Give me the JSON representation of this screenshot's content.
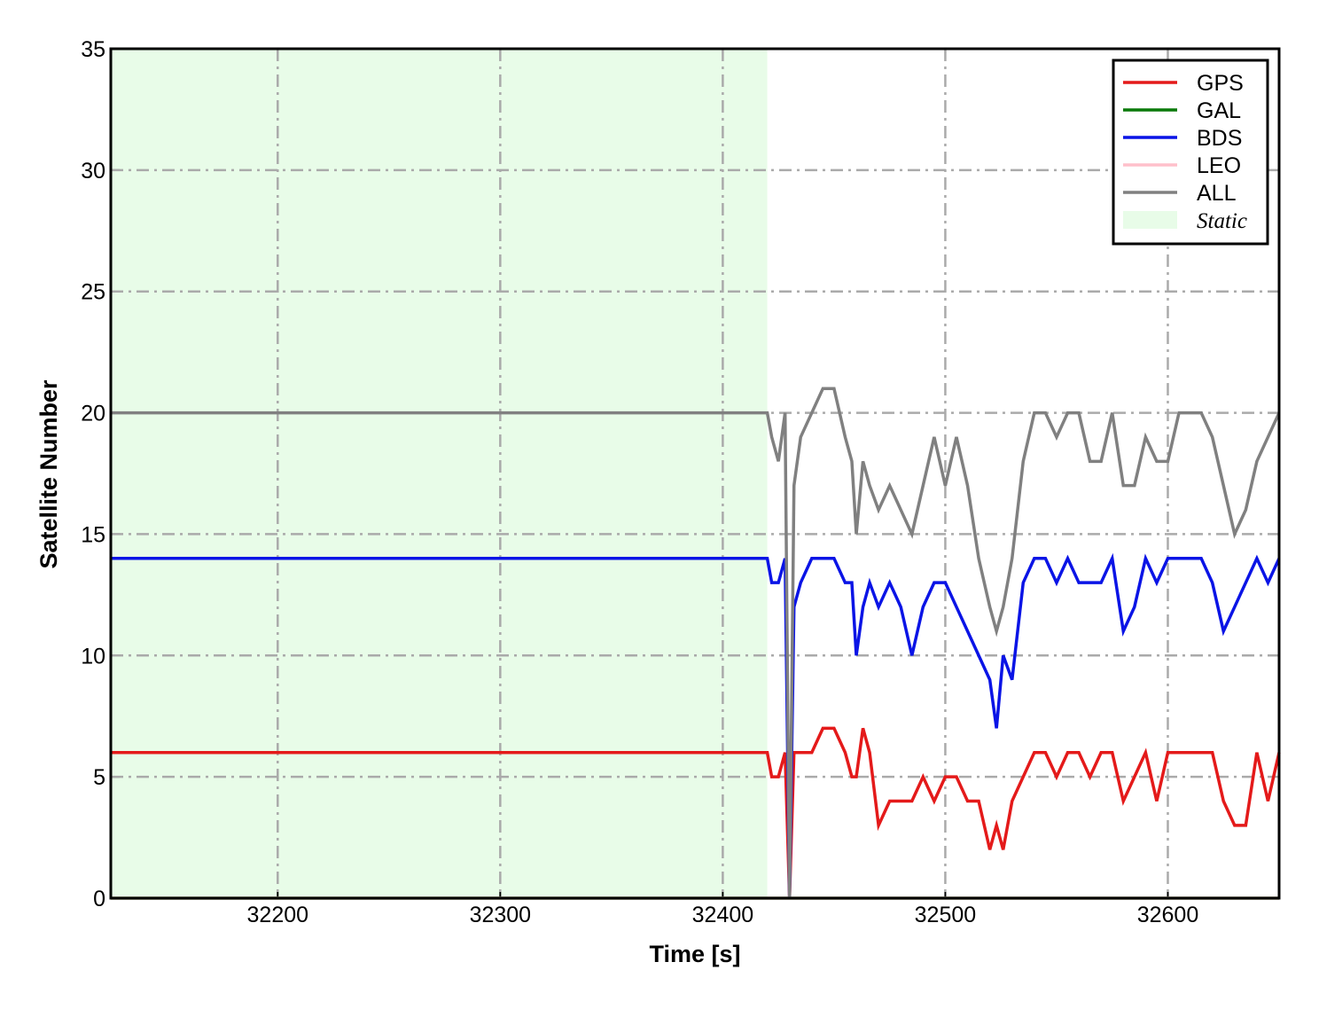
{
  "chart_data": {
    "type": "line",
    "xlabel": "Time [s]",
    "ylabel": "Satellite Number",
    "xlim": [
      32125,
      32650
    ],
    "xticks": [
      32200,
      32300,
      32400,
      32500,
      32600
    ],
    "ylim": [
      0,
      35
    ],
    "yticks": [
      0,
      5,
      10,
      15,
      20,
      25,
      30,
      35
    ],
    "grid": true,
    "legend": "upper right",
    "static_region": {
      "name": "Static",
      "xlim": [
        32125,
        32420
      ],
      "color": "#e8fce8"
    },
    "x": [
      32125,
      32420,
      32422,
      32425,
      32428,
      32430,
      32432,
      32435,
      32440,
      32445,
      32450,
      32455,
      32458,
      32460,
      32463,
      32466,
      32470,
      32475,
      32480,
      32485,
      32490,
      32495,
      32500,
      32505,
      32510,
      32515,
      32520,
      32523,
      32526,
      32530,
      32535,
      32540,
      32545,
      32550,
      32555,
      32560,
      32565,
      32570,
      32575,
      32580,
      32585,
      32590,
      32595,
      32600,
      32605,
      32610,
      32615,
      32620,
      32625,
      32630,
      32635,
      32640,
      32645,
      32650
    ],
    "series": [
      {
        "name": "GPS",
        "color": "#e41a1a",
        "values": [
          6,
          6,
          5,
          5,
          6,
          0,
          6,
          6,
          6,
          7,
          7,
          6,
          5,
          5,
          7,
          6,
          3,
          4,
          4,
          4,
          5,
          4,
          5,
          5,
          4,
          4,
          2,
          3,
          2,
          4,
          5,
          6,
          6,
          5,
          6,
          6,
          5,
          6,
          6,
          4,
          5,
          6,
          4,
          6,
          6,
          6,
          6,
          6,
          4,
          3,
          3,
          6,
          4,
          6
        ]
      },
      {
        "name": "GAL",
        "color": "#0a7a0a",
        "values": [
          0,
          0,
          0,
          0,
          0,
          0,
          0,
          0,
          0,
          0,
          0,
          0,
          0,
          0,
          0,
          0,
          0,
          0,
          0,
          0,
          0,
          0,
          0,
          0,
          0,
          0,
          0,
          0,
          0,
          0,
          0,
          0,
          0,
          0,
          0,
          0,
          0,
          0,
          0,
          0,
          0,
          0,
          0,
          0,
          0,
          0,
          0,
          0,
          0,
          0,
          0,
          0,
          0,
          0
        ]
      },
      {
        "name": "BDS",
        "color": "#0a14e6",
        "values": [
          14,
          14,
          13,
          13,
          14,
          0,
          12,
          13,
          14,
          14,
          14,
          13,
          13,
          10,
          12,
          13,
          12,
          13,
          12,
          10,
          12,
          13,
          13,
          12,
          11,
          10,
          9,
          7,
          10,
          9,
          13,
          14,
          14,
          13,
          14,
          13,
          13,
          13,
          14,
          11,
          12,
          14,
          13,
          14,
          14,
          14,
          14,
          13,
          11,
          12,
          13,
          14,
          13,
          14
        ]
      },
      {
        "name": "LEO",
        "color": "#ffc0cb",
        "values": [
          0,
          0,
          0,
          0,
          0,
          0,
          0,
          0,
          0,
          0,
          0,
          0,
          0,
          0,
          0,
          0,
          0,
          0,
          0,
          0,
          0,
          0,
          0,
          0,
          0,
          0,
          0,
          0,
          0,
          0,
          0,
          0,
          0,
          0,
          0,
          0,
          0,
          0,
          0,
          0,
          0,
          0,
          0,
          0,
          0,
          0,
          0,
          0,
          0,
          0,
          0,
          0,
          0,
          0
        ]
      },
      {
        "name": "ALL",
        "color": "#808080",
        "values": [
          20,
          20,
          19,
          18,
          20,
          0,
          17,
          19,
          20,
          21,
          21,
          19,
          18,
          15,
          18,
          17,
          16,
          17,
          16,
          15,
          17,
          19,
          17,
          19,
          17,
          14,
          12,
          11,
          12,
          14,
          18,
          20,
          20,
          19,
          20,
          20,
          18,
          18,
          20,
          17,
          17,
          19,
          18,
          18,
          20,
          20,
          20,
          19,
          17,
          15,
          16,
          18,
          19,
          20
        ]
      }
    ]
  }
}
